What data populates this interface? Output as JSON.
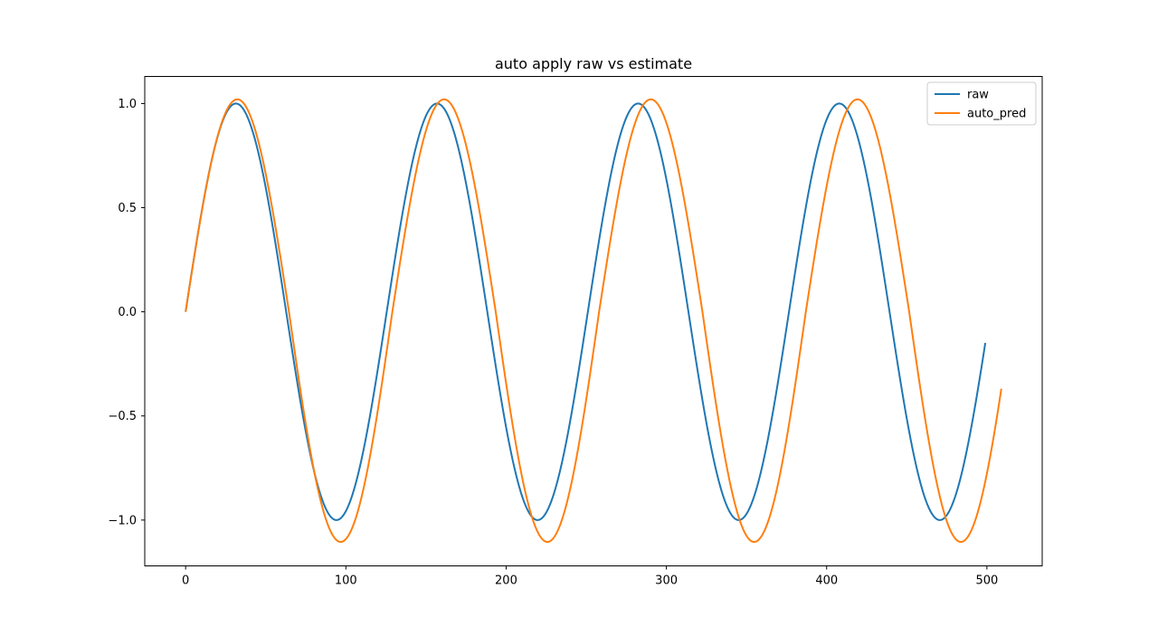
{
  "chart_data": {
    "type": "line",
    "title": "auto apply raw vs estimate",
    "xlabel": "",
    "ylabel": "",
    "xlim": [
      -25.5,
      534.5
    ],
    "ylim": [
      -1.22,
      1.13
    ],
    "xticks": [
      0,
      100,
      200,
      300,
      400,
      500
    ],
    "xtick_labels": [
      "0",
      "100",
      "200",
      "300",
      "400",
      "500"
    ],
    "yticks": [
      -1.0,
      -0.5,
      0.0,
      0.5,
      1.0
    ],
    "ytick_labels": [
      "−1.0",
      "−0.5",
      "0.0",
      "0.5",
      "1.0"
    ],
    "grid": false,
    "legend_position": "top-right",
    "series": [
      {
        "name": "raw",
        "color": "#1f77b4",
        "function": "sin",
        "x_start": 0,
        "x_end": 499,
        "period": 125.5,
        "amplitude": 1.0
      },
      {
        "name": "auto_pred",
        "color": "#ff7f0e",
        "function": "sin",
        "x_start": 0,
        "x_end": 509,
        "period": 129,
        "amplitude": 1.02,
        "amplitude_trough": 1.105
      }
    ]
  }
}
